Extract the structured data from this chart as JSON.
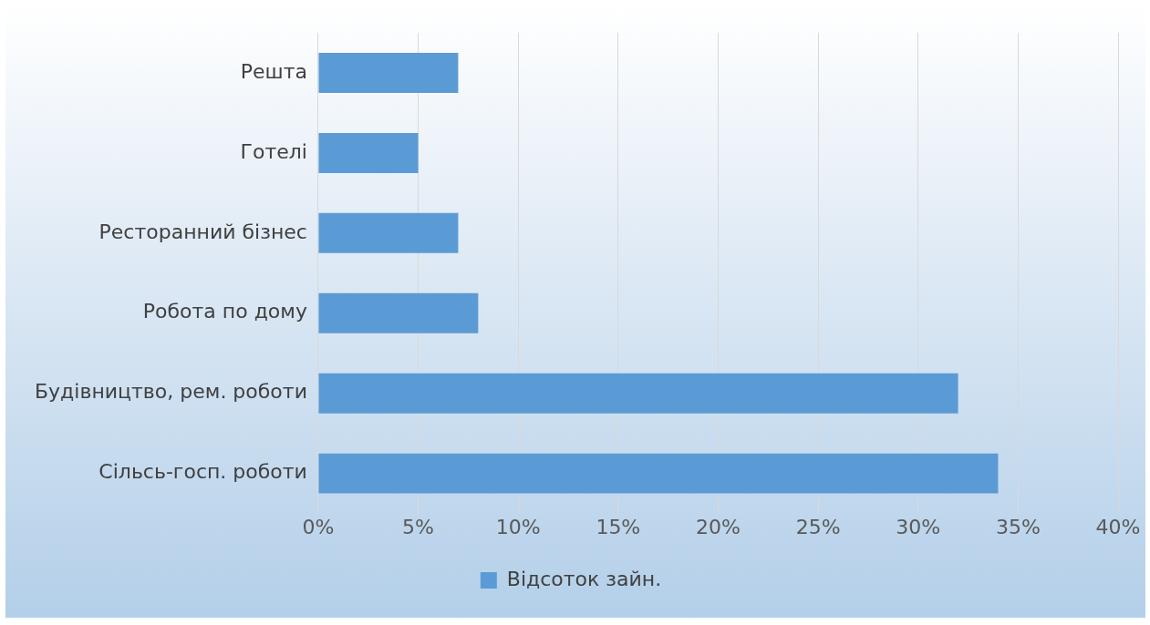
{
  "chart_data": {
    "type": "bar",
    "orientation": "horizontal",
    "categories": [
      "Решта",
      "Готелі",
      "Ресторанний бізнес",
      "Робота по дому",
      "Будівництво, рем. роботи",
      "Сільсь-госп. роботи"
    ],
    "series": [
      {
        "name": "Відсоток зайн.",
        "color": "#5b9bd5",
        "values": [
          7,
          5,
          7,
          8,
          32,
          34
        ]
      }
    ],
    "xlim": [
      0,
      40
    ],
    "xticks": [
      {
        "value": 0,
        "label": "0%"
      },
      {
        "value": 5,
        "label": "5%"
      },
      {
        "value": 10,
        "label": "10%"
      },
      {
        "value": 15,
        "label": "15%"
      },
      {
        "value": 20,
        "label": "20%"
      },
      {
        "value": 25,
        "label": "25%"
      },
      {
        "value": 30,
        "label": "30%"
      },
      {
        "value": 35,
        "label": "35%"
      },
      {
        "value": 40,
        "label": "40%"
      }
    ],
    "grid": "x",
    "legend": "bottom"
  }
}
